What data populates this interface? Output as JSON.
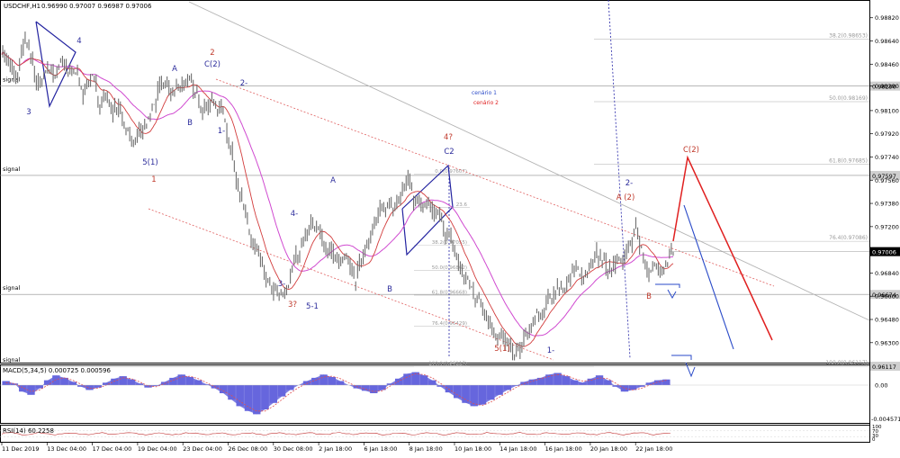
{
  "header": {
    "symbol_timeframe": "USDCHF,H1",
    "ohlc": "0.96990 0.97007 0.96987 0.97006"
  },
  "colors": {
    "price": "#6e6e6e",
    "ma_red": "#d23c3c",
    "ma_magenta": "#d04ad0",
    "channel_red": "#e06060",
    "trend_gray": "#b4b4b4",
    "fib_line": "#c8c8c8",
    "wave_blue": "#2b2b9b",
    "wave_red": "#c0392b",
    "scenario1": "#2a4ac8",
    "scenario2": "#e02020",
    "macd_hist": "#6666dd",
    "macd_signal": "#e05050",
    "rsi": "#c03030"
  },
  "chart_data": [
    {
      "type": "line",
      "title": "USDCHF,H1",
      "price_scale": {
        "ticks": [
          "0.98820",
          "0.98640",
          "0.98460",
          "0.98290",
          "0.98100",
          "0.97920",
          "0.97740",
          "0.97560",
          "0.97380",
          "0.97200",
          "0.97006",
          "0.96840",
          "0.96660",
          "0.96480",
          "0.96300"
        ],
        "ylim": [
          0.9618,
          0.9886
        ],
        "current_price": "0.97006"
      },
      "time_axis": [
        "11 Dec 2019",
        "13 Dec 04:00",
        "17 Dec 04:00",
        "19 Dec 04:00",
        "23 Dec 04:00",
        "26 Dec 08:00",
        "30 Dec 08:00",
        "2 Jan 18:00",
        "6 Jan 18:00",
        "8 Jan 18:00",
        "10 Jan 18:00",
        "14 Jan 18:00",
        "16 Jan 18:00",
        "20 Jan 18:00",
        "22 Jan 18:00"
      ],
      "price_path": [
        [
          0,
          0.9858
        ],
        [
          4,
          0.9845
        ],
        [
          8,
          0.9833
        ],
        [
          12,
          0.9864
        ],
        [
          16,
          0.9848
        ],
        [
          20,
          0.9828
        ],
        [
          24,
          0.9845
        ],
        [
          28,
          0.9838
        ],
        [
          32,
          0.985
        ],
        [
          36,
          0.9836
        ],
        [
          40,
          0.9842
        ],
        [
          44,
          0.9825
        ],
        [
          48,
          0.9835
        ],
        [
          52,
          0.982
        ],
        [
          56,
          0.9822
        ],
        [
          60,
          0.981
        ],
        [
          64,
          0.981
        ],
        [
          68,
          0.9795
        ],
        [
          72,
          0.9785
        ],
        [
          76,
          0.979
        ],
        [
          80,
          0.9805
        ],
        [
          84,
          0.982
        ],
        [
          88,
          0.9832
        ],
        [
          92,
          0.9822
        ],
        [
          96,
          0.983
        ],
        [
          100,
          0.9836
        ],
        [
          104,
          0.9822
        ],
        [
          108,
          0.9815
        ],
        [
          112,
          0.9818
        ],
        [
          116,
          0.9812
        ],
        [
          120,
          0.981
        ],
        [
          124,
          0.978
        ],
        [
          128,
          0.9755
        ],
        [
          132,
          0.9725
        ],
        [
          136,
          0.9705
        ],
        [
          140,
          0.969
        ],
        [
          144,
          0.9675
        ],
        [
          148,
          0.9668
        ],
        [
          152,
          0.9664
        ],
        [
          156,
          0.968
        ],
        [
          160,
          0.97
        ],
        [
          164,
          0.9712
        ],
        [
          168,
          0.9725
        ],
        [
          172,
          0.9712
        ],
        [
          176,
          0.9705
        ],
        [
          180,
          0.9698
        ],
        [
          184,
          0.969
        ],
        [
          188,
          0.969
        ],
        [
          192,
          0.968
        ],
        [
          196,
          0.97
        ],
        [
          200,
          0.9718
        ],
        [
          204,
          0.9725
        ],
        [
          208,
          0.9735
        ],
        [
          212,
          0.974
        ],
        [
          216,
          0.9748
        ],
        [
          220,
          0.9758
        ],
        [
          224,
          0.974
        ],
        [
          228,
          0.9735
        ],
        [
          232,
          0.973
        ],
        [
          236,
          0.9728
        ],
        [
          240,
          0.972
        ],
        [
          244,
          0.9705
        ],
        [
          248,
          0.9688
        ],
        [
          252,
          0.9678
        ],
        [
          256,
          0.9668
        ],
        [
          260,
          0.966
        ],
        [
          264,
          0.965
        ],
        [
          268,
          0.9638
        ],
        [
          272,
          0.963
        ],
        [
          276,
          0.9622
        ],
        [
          280,
          0.9622
        ],
        [
          284,
          0.9635
        ],
        [
          288,
          0.9645
        ],
        [
          292,
          0.965
        ],
        [
          296,
          0.966
        ],
        [
          300,
          0.9672
        ],
        [
          304,
          0.9675
        ],
        [
          308,
          0.9678
        ],
        [
          312,
          0.9686
        ],
        [
          316,
          0.9685
        ],
        [
          320,
          0.9692
        ],
        [
          324,
          0.9698
        ],
        [
          328,
          0.9688
        ],
        [
          332,
          0.969
        ],
        [
          336,
          0.9692
        ],
        [
          340,
          0.9705
        ],
        [
          344,
          0.972
        ],
        [
          348,
          0.9695
        ],
        [
          352,
          0.9682
        ],
        [
          356,
          0.969
        ],
        [
          360,
          0.9695
        ],
        [
          364,
          0.97
        ]
      ],
      "fib_levels": [
        {
          "label": "38.2(0.98653)",
          "price": 0.98653
        },
        {
          "label": "50.0(0.98169)",
          "price": 0.98169
        },
        {
          "label": "61.8(0.97685)",
          "price": 0.97685
        },
        {
          "label": "76.4(0.97086)",
          "price": 0.97086
        },
        {
          "label": "100.0(0.96117)",
          "price": 0.96117
        }
      ],
      "inner_fib_levels": [
        {
          "label": "0.0(0.97607)",
          "price": 0.97607
        },
        {
          "label": "23.6",
          "price": 0.9735
        },
        {
          "label": "38.2(0.97055)",
          "price": 0.97055
        },
        {
          "label": "50.0(0.96862)",
          "price": 0.96862
        },
        {
          "label": "61.8(0.96668)",
          "price": 0.96668
        },
        {
          "label": "76.4(0.96429)",
          "price": 0.96429
        },
        {
          "label": "100.0(0.96117)",
          "price": 0.96117
        }
      ],
      "horizontal_levels": [
        {
          "label": "signal",
          "price": 0.9829,
          "value": "0.98290"
        },
        {
          "label": "signal",
          "price": 0.97597,
          "value": "0.97597"
        },
        {
          "label": "signal",
          "price": 0.96674,
          "value": "0.96674"
        },
        {
          "label": "signal",
          "price": 0.96117,
          "value": "0.96117"
        }
      ],
      "wave_labels_blue": [
        "4",
        "3",
        "A",
        "C(2)",
        "B",
        "1-",
        "2-",
        "5(1)",
        "A",
        "4-",
        "3-",
        "5-1",
        "B",
        "C2",
        "2-",
        "1-"
      ],
      "wave_labels_red": [
        "2",
        "1",
        "4?",
        "3?",
        "5(1)",
        "A (2)",
        "B",
        "C(2)"
      ],
      "legend": [
        {
          "name": "cenário 1",
          "color": "#2a4ac8"
        },
        {
          "name": "cenário 2",
          "color": "#e02020"
        }
      ]
    },
    {
      "type": "bar",
      "title": "MACD(5,34,5) 0.000725 0.000596",
      "ticks": [
        "0.00",
        "-0.004571"
      ],
      "histogram": [
        0.5,
        0.2,
        -0.8,
        -1.2,
        -0.4,
        0.6,
        1.2,
        0.9,
        0.4,
        -0.2,
        -0.6,
        -0.3,
        0.3,
        0.8,
        1.1,
        0.7,
        0.2,
        -0.3,
        -0.1,
        0.4,
        0.9,
        1.3,
        1.0,
        0.6,
        0.1,
        -0.4,
        -1.0,
        -1.8,
        -2.6,
        -3.2,
        -3.6,
        -3.0,
        -2.2,
        -1.4,
        -0.6,
        0.0,
        0.5,
        0.9,
        1.3,
        1.0,
        0.5,
        0.0,
        -0.4,
        -0.7,
        -1.0,
        -0.6,
        0.2,
        0.8,
        1.4,
        1.6,
        1.2,
        0.6,
        -0.2,
        -0.9,
        -1.6,
        -2.2,
        -2.6,
        -2.4,
        -1.8,
        -1.2,
        -0.6,
        -0.1,
        0.4,
        0.7,
        0.9,
        1.3,
        1.5,
        1.1,
        0.6,
        0.3,
        0.8,
        1.2,
        0.6,
        -0.2,
        -0.8,
        -0.6,
        -0.2,
        0.3,
        0.6,
        0.7
      ],
      "signal": [
        0.3,
        0.2,
        -0.3,
        -0.8,
        -0.6,
        0.0,
        0.7,
        0.9,
        0.6,
        0.1,
        -0.4,
        -0.4,
        0.0,
        0.5,
        0.9,
        0.8,
        0.4,
        -0.1,
        -0.2,
        0.2,
        0.6,
        1.0,
        1.1,
        0.8,
        0.3,
        -0.2,
        -0.7,
        -1.3,
        -2.0,
        -2.7,
        -3.2,
        -3.2,
        -2.6,
        -1.8,
        -1.0,
        -0.3,
        0.2,
        0.6,
        1.0,
        1.1,
        0.8,
        0.3,
        -0.2,
        -0.5,
        -0.8,
        -0.7,
        -0.1,
        0.5,
        1.0,
        1.4,
        1.3,
        0.9,
        0.2,
        -0.5,
        -1.2,
        -1.8,
        -2.3,
        -2.5,
        -2.1,
        -1.5,
        -0.9,
        -0.3,
        0.2,
        0.5,
        0.8,
        1.1,
        1.3,
        1.2,
        0.8,
        0.5,
        0.6,
        0.9,
        0.8,
        0.2,
        -0.4,
        -0.6,
        -0.4,
        0.0,
        0.4,
        0.6
      ]
    },
    {
      "type": "line",
      "title": "RSI(14) 60.2258",
      "ticks": [
        "100",
        "70",
        "30",
        "0"
      ],
      "ylim": [
        0,
        100
      ]
    }
  ]
}
